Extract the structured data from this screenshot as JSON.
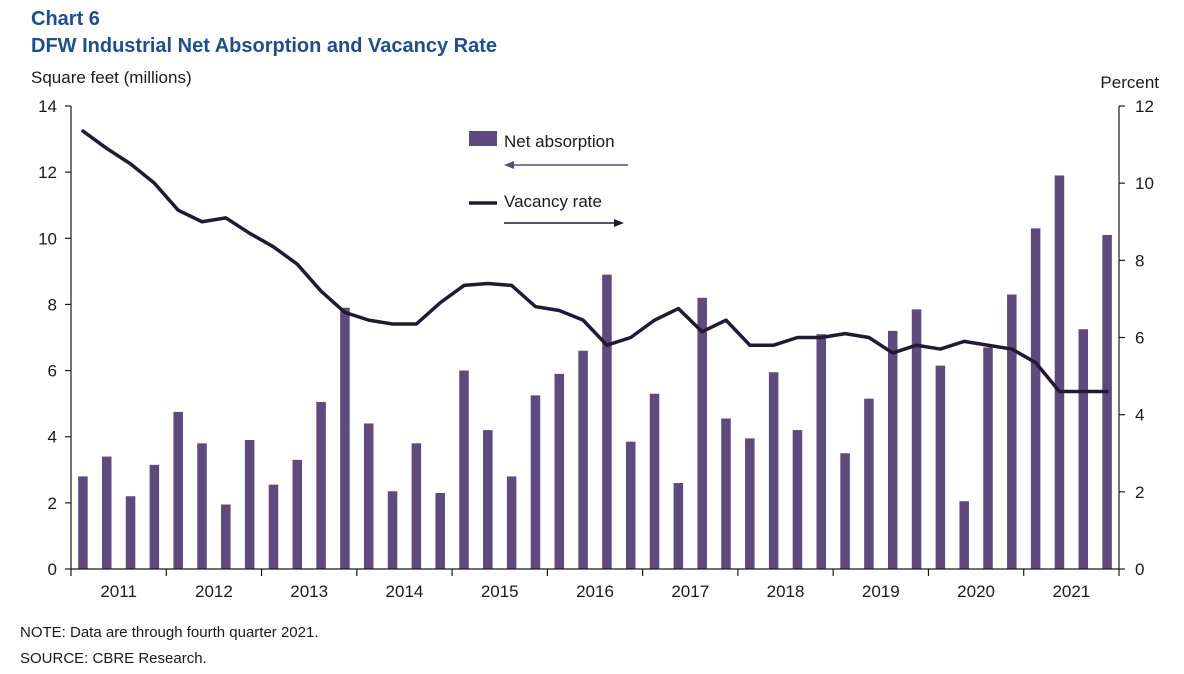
{
  "header": {
    "chart_number": "Chart 6",
    "title": "DFW Industrial Net Absorption and Vacancy Rate"
  },
  "colors": {
    "bar": "#5e4a7c",
    "line": "#201b33",
    "axis": "#1a1a1a",
    "title": "#1f4e89"
  },
  "footer": {
    "note": "NOTE: Data are through fourth quarter 2021.",
    "source": "SOURCE: CBRE Research."
  },
  "chart_data": {
    "type": "bar",
    "title": "DFW Industrial Net Absorption and Vacancy Rate",
    "ylabel_left": "Square feet (millions)",
    "ylabel_right": "Percent",
    "ylim_left": [
      0,
      14
    ],
    "ylim_right": [
      0,
      12
    ],
    "yticks_left": [
      0,
      2,
      4,
      6,
      8,
      10,
      12,
      14
    ],
    "yticks_right": [
      0,
      2,
      4,
      6,
      8,
      10,
      12
    ],
    "grid": false,
    "legend_position": "top-center",
    "years": [
      "2011",
      "2012",
      "2013",
      "2014",
      "2015",
      "2016",
      "2017",
      "2018",
      "2019",
      "2020",
      "2021"
    ],
    "quarters_per_year": 4,
    "series": [
      {
        "name": "Net absorption",
        "type": "bar",
        "axis": "left",
        "legend_arrow": "left",
        "values": [
          2.8,
          3.4,
          2.2,
          3.15,
          4.75,
          3.8,
          1.95,
          3.9,
          2.55,
          3.3,
          5.05,
          7.9,
          4.4,
          2.35,
          3.8,
          2.3,
          6.0,
          4.2,
          2.8,
          5.25,
          5.9,
          6.6,
          8.9,
          3.85,
          5.3,
          2.6,
          8.2,
          4.55,
          3.95,
          5.95,
          4.2,
          7.1,
          3.5,
          5.15,
          7.2,
          7.85,
          6.15,
          2.05,
          6.7,
          8.3,
          10.3,
          11.9,
          7.25,
          10.1
        ]
      },
      {
        "name": "Vacancy rate",
        "type": "line",
        "axis": "right",
        "legend_arrow": "right",
        "values": [
          11.35,
          10.9,
          10.5,
          10.0,
          9.3,
          9.0,
          9.1,
          8.7,
          8.35,
          7.9,
          7.2,
          6.65,
          6.45,
          6.35,
          6.35,
          6.9,
          7.35,
          7.4,
          7.35,
          6.8,
          6.7,
          6.45,
          5.8,
          6.0,
          6.45,
          6.75,
          6.15,
          6.45,
          5.8,
          5.8,
          6.0,
          6.0,
          6.1,
          6.0,
          5.6,
          5.8,
          5.7,
          5.9,
          5.8,
          5.7,
          5.35,
          4.6,
          4.6,
          4.6
        ]
      }
    ]
  }
}
